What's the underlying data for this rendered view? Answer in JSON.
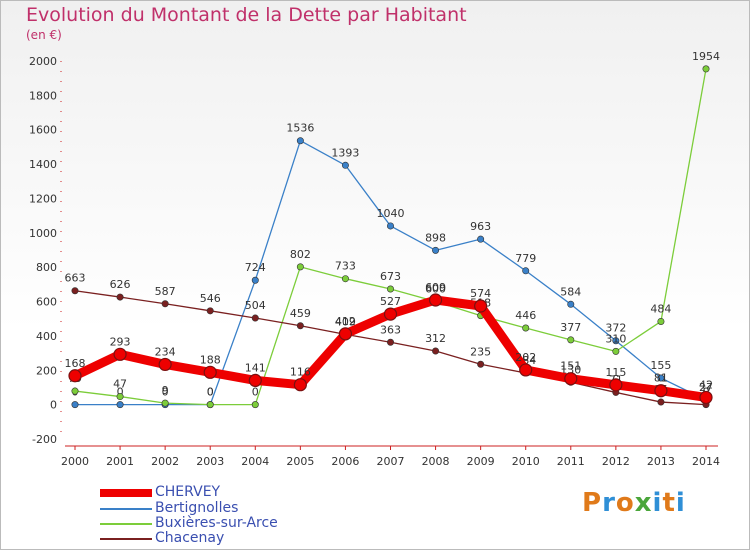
{
  "title": "Evolution du Montant de la Dette par Habitant",
  "subtitle": "(en €)",
  "brand": {
    "text": "Proxiti",
    "colors": [
      "#e07a1a",
      "#2f8fd6",
      "#e07a1a",
      "#4aa63a",
      "#2f8fd6",
      "#e07a1a",
      "#2f8fd6"
    ]
  },
  "chart_data": {
    "type": "line",
    "categories": [
      "2000",
      "2001",
      "2002",
      "2003",
      "2004",
      "2005",
      "2006",
      "2007",
      "2008",
      "2009",
      "2010",
      "2011",
      "2012",
      "2013",
      "2014"
    ],
    "ylim": [
      -200,
      2000
    ],
    "yticks": [
      "-200",
      "0",
      "200",
      "400",
      "600",
      "800",
      "1000",
      "1200",
      "1400",
      "1600",
      "1800",
      "2000"
    ],
    "grid": false,
    "legend_position": "bottom-left",
    "series": [
      {
        "name": "CHERVEY",
        "color": "#ee0000",
        "values": [
          168,
          293,
          234,
          188,
          141,
          116,
          412,
          527,
          609,
          574,
          202,
          151,
          115,
          81,
          42
        ],
        "labels": [
          "168",
          "293",
          "234",
          "188",
          "141",
          "116",
          "412",
          "527",
          "609",
          "574",
          "202",
          "151",
          "115",
          "81",
          "42"
        ]
      },
      {
        "name": "Bertignolles",
        "color": "#3a80c8",
        "values": [
          0,
          0,
          0,
          0,
          724,
          1536,
          1393,
          1040,
          898,
          963,
          779,
          584,
          372,
          155,
          27
        ],
        "labels": [
          "0",
          "0",
          "0",
          "0",
          "724",
          "1536",
          "1393",
          "1040",
          "898",
          "963",
          "779",
          "584",
          "372",
          "155",
          "27"
        ]
      },
      {
        "name": "Buxières-sur-Arce",
        "color": "#7ccd3a",
        "values": [
          79,
          47,
          9,
          0,
          0,
          802,
          733,
          673,
          600,
          518,
          446,
          377,
          310,
          484,
          1954
        ],
        "labels": [
          "79",
          "47",
          "9",
          "0",
          "0",
          "802",
          "733",
          "673",
          "600",
          "518",
          "446",
          "377",
          "310",
          "484",
          "1954"
        ]
      },
      {
        "name": "Chacenay",
        "color": "#7a2020",
        "values": [
          663,
          626,
          587,
          546,
          504,
          459,
          409,
          363,
          312,
          235,
          184,
          130,
          71,
          15,
          0
        ],
        "labels": [
          "663",
          "626",
          "587",
          "546",
          "504",
          "459",
          "409",
          "363",
          "312",
          "235",
          "184",
          "130",
          "71",
          "15",
          "0"
        ]
      }
    ]
  }
}
